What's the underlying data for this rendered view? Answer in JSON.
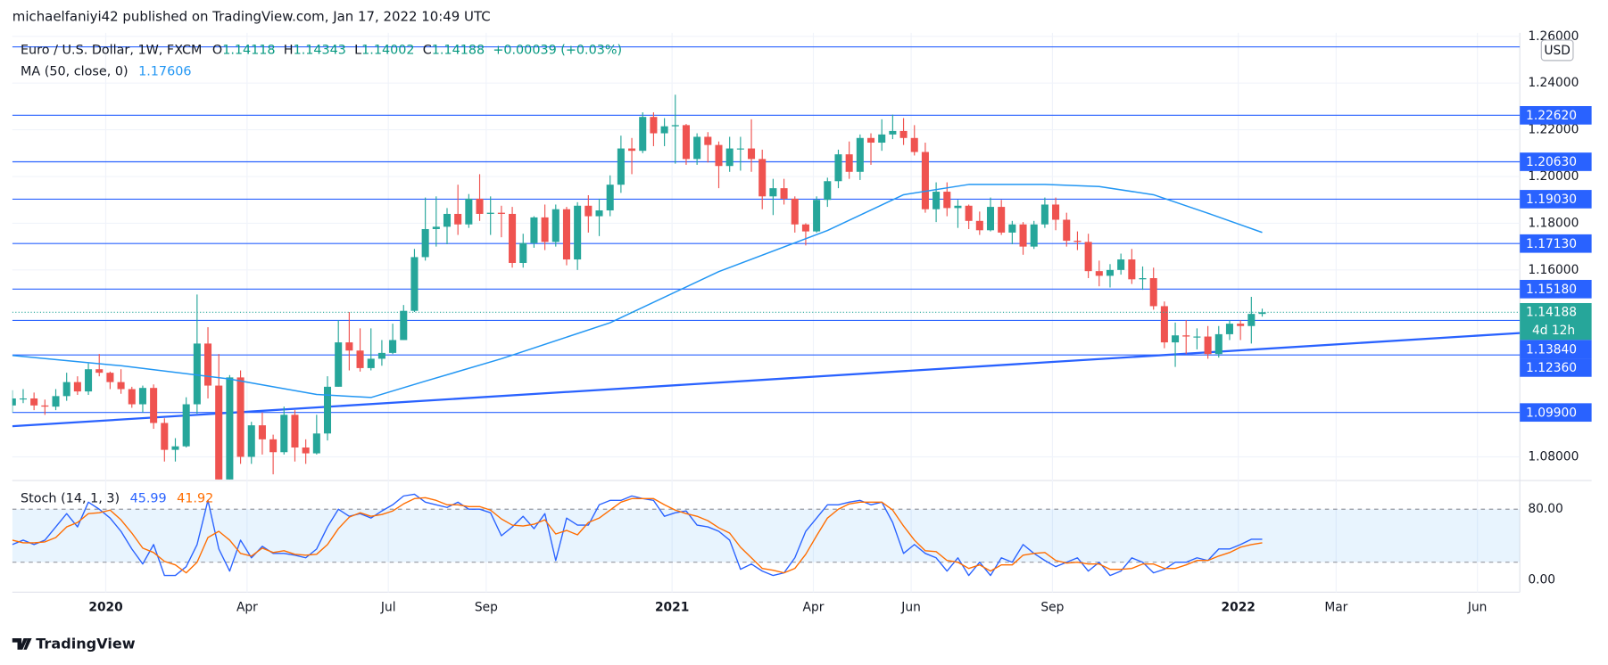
{
  "header": {
    "publisher": "michaelfaniyi42 published on TradingView.com, Jan 17, 2022 10:49 UTC"
  },
  "footer": {
    "brand": "TradingView"
  },
  "chart_data": [
    {
      "type": "candlestick",
      "title": "Euro / U.S. Dollar, 1W, FXCM",
      "ohlc_labels": [
        "O",
        "H",
        "L",
        "C"
      ],
      "change": "+0.00039 (+0.03%)",
      "currency": "USD",
      "countdown": "4d 12h",
      "up_color": "#26a69a",
      "down_color": "#ef5350",
      "open": [
        1.102,
        1.105,
        1.105,
        1.102,
        1.1015,
        1.106,
        1.112,
        1.108,
        1.1175,
        1.116,
        1.112,
        1.109,
        1.1025,
        1.1095,
        1.0945,
        1.083,
        1.0845,
        1.1025,
        1.1285,
        1.1105,
        1.0695,
        1.114,
        1.08,
        1.0935,
        1.0875,
        1.082,
        1.098,
        1.084,
        1.0815,
        1.09,
        1.11,
        1.129,
        1.1255,
        1.118,
        1.122,
        1.1245,
        1.13,
        1.1425,
        1.1655,
        1.1775,
        1.1785,
        1.184,
        1.1795,
        1.1905,
        1.184,
        1.1845,
        1.184,
        1.163,
        1.1715,
        1.1825,
        1.172,
        1.186,
        1.1645,
        1.1875,
        1.183,
        1.1855,
        1.1965,
        1.212,
        1.211,
        1.2255,
        1.2185,
        1.2215,
        1.222,
        1.2075,
        1.217,
        1.2135,
        1.2045,
        1.212,
        1.212,
        1.2075,
        1.1915,
        1.195,
        1.1905,
        1.1795,
        1.1765,
        1.19,
        1.198,
        1.2095,
        1.202,
        1.2165,
        1.2145,
        1.218,
        1.2195,
        1.2165,
        1.2105,
        1.186,
        1.1935,
        1.1865,
        1.1875,
        1.181,
        1.177,
        1.187,
        1.176,
        1.1795,
        1.17,
        1.1795,
        1.188,
        1.1815,
        1.1725,
        1.172,
        1.1595,
        1.1575,
        1.16,
        1.1645,
        1.156,
        1.1565,
        1.1445,
        1.129,
        1.132,
        1.1315,
        1.1315,
        1.124,
        1.1325,
        1.137,
        1.136,
        1.14118
      ],
      "high": [
        1.1085,
        1.109,
        1.1075,
        1.1045,
        1.109,
        1.116,
        1.1145,
        1.12,
        1.124,
        1.1165,
        1.1175,
        1.11,
        1.1105,
        1.111,
        1.0965,
        1.088,
        1.1055,
        1.1495,
        1.1355,
        1.124,
        1.115,
        1.117,
        1.095,
        1.099,
        1.0895,
        1.1015,
        1.1,
        1.0875,
        1.098,
        1.1145,
        1.1385,
        1.142,
        1.135,
        1.135,
        1.13,
        1.137,
        1.145,
        1.169,
        1.191,
        1.1915,
        1.1865,
        1.1965,
        1.1925,
        1.201,
        1.1915,
        1.1875,
        1.187,
        1.1755,
        1.183,
        1.188,
        1.188,
        1.187,
        1.189,
        1.192,
        1.1905,
        1.2005,
        1.2175,
        1.2165,
        1.2275,
        1.2275,
        1.225,
        1.235,
        1.2225,
        1.2185,
        1.219,
        1.215,
        1.217,
        1.217,
        1.2245,
        1.2115,
        1.199,
        1.199,
        1.1915,
        1.18,
        1.1915,
        1.1995,
        1.2115,
        1.215,
        1.218,
        1.2185,
        1.2245,
        1.2265,
        1.225,
        1.222,
        1.2145,
        1.1975,
        1.1975,
        1.19,
        1.188,
        1.185,
        1.191,
        1.19,
        1.181,
        1.1805,
        1.181,
        1.191,
        1.191,
        1.1845,
        1.1765,
        1.1755,
        1.164,
        1.1625,
        1.167,
        1.169,
        1.1615,
        1.161,
        1.1465,
        1.1375,
        1.1385,
        1.135,
        1.136,
        1.136,
        1.1385,
        1.1385,
        1.1485,
        1.14343
      ],
      "low": [
        1.099,
        1.103,
        1.1,
        1.098,
        1.1,
        1.104,
        1.1065,
        1.1065,
        1.1145,
        1.109,
        1.107,
        1.101,
        1.099,
        1.092,
        1.078,
        1.078,
        1.084,
        1.0985,
        1.105,
        1.0636,
        1.069,
        1.077,
        1.077,
        1.081,
        1.0725,
        1.081,
        1.078,
        1.077,
        1.081,
        1.087,
        1.11,
        1.117,
        1.1165,
        1.117,
        1.119,
        1.124,
        1.13,
        1.142,
        1.164,
        1.17,
        1.171,
        1.175,
        1.178,
        1.181,
        1.175,
        1.174,
        1.161,
        1.161,
        1.1695,
        1.1685,
        1.17,
        1.162,
        1.16,
        1.176,
        1.1745,
        1.183,
        1.193,
        1.201,
        1.21,
        1.213,
        1.213,
        1.2055,
        1.205,
        1.205,
        1.206,
        1.195,
        1.202,
        1.2025,
        1.202,
        1.186,
        1.1835,
        1.188,
        1.176,
        1.1705,
        1.176,
        1.187,
        1.195,
        1.199,
        1.1985,
        1.205,
        1.211,
        1.216,
        1.2135,
        1.209,
        1.1845,
        1.1805,
        1.183,
        1.178,
        1.1775,
        1.175,
        1.1765,
        1.175,
        1.171,
        1.1665,
        1.169,
        1.178,
        1.177,
        1.17,
        1.1685,
        1.1565,
        1.153,
        1.1525,
        1.158,
        1.154,
        1.1515,
        1.143,
        1.1265,
        1.1185,
        1.124,
        1.126,
        1.122,
        1.1225,
        1.13,
        1.13,
        1.1285,
        1.14002
      ],
      "close": [
        1.105,
        1.105,
        1.102,
        1.1015,
        1.106,
        1.112,
        1.108,
        1.1175,
        1.116,
        1.112,
        1.109,
        1.1025,
        1.1095,
        1.0945,
        1.083,
        1.0845,
        1.1025,
        1.1285,
        1.1105,
        1.0695,
        1.114,
        1.08,
        1.0935,
        1.0875,
        1.082,
        1.098,
        1.084,
        1.0815,
        1.09,
        1.11,
        1.129,
        1.1255,
        1.118,
        1.122,
        1.1245,
        1.13,
        1.1425,
        1.1655,
        1.1775,
        1.1785,
        1.184,
        1.1795,
        1.1905,
        1.184,
        1.1845,
        1.184,
        1.163,
        1.1715,
        1.1825,
        1.172,
        1.186,
        1.1645,
        1.1875,
        1.183,
        1.1855,
        1.1965,
        1.212,
        1.211,
        1.2255,
        1.2185,
        1.2215,
        1.222,
        1.2075,
        1.217,
        1.2135,
        1.2045,
        1.212,
        1.212,
        1.2075,
        1.1915,
        1.195,
        1.1905,
        1.1795,
        1.1765,
        1.19,
        1.198,
        1.2095,
        1.202,
        1.2165,
        1.2145,
        1.218,
        1.2195,
        1.2165,
        1.2105,
        1.186,
        1.1935,
        1.1865,
        1.1875,
        1.181,
        1.177,
        1.187,
        1.176,
        1.1795,
        1.17,
        1.1795,
        1.188,
        1.1815,
        1.1725,
        1.172,
        1.1595,
        1.1575,
        1.16,
        1.1645,
        1.156,
        1.1565,
        1.1445,
        1.129,
        1.132,
        1.1315,
        1.1315,
        1.124,
        1.1325,
        1.137,
        1.136,
        1.14118,
        1.14188
      ],
      "ma": {
        "name": "MA (50, close, 0)",
        "color": "#2196f3",
        "x": [
          0,
          10,
          20,
          28,
          33,
          38,
          45,
          55,
          65,
          75,
          82,
          88,
          95,
          100,
          105,
          110,
          115
        ],
        "values": [
          1.1234,
          1.119,
          1.1133,
          1.1067,
          1.1054,
          1.1124,
          1.122,
          1.1374,
          1.1593,
          1.1769,
          1.1922,
          1.1966,
          1.1966,
          1.1957,
          1.1922,
          1.1843,
          1.17606
        ]
      },
      "trendline": {
        "color": "#2962ff",
        "x": [
          0,
          138.7
        ],
        "values": [
          1.0931,
          1.133
        ]
      },
      "levels": [
        {
          "value": 1.2555
        },
        {
          "value": 1.2262,
          "label": "1.22620"
        },
        {
          "value": 1.2063,
          "label": "1.20630"
        },
        {
          "value": 1.1903,
          "label": "1.19030"
        },
        {
          "value": 1.1713,
          "label": "1.17130"
        },
        {
          "value": 1.1518,
          "label": "1.15180"
        },
        {
          "value": 1.1384,
          "label": "1.13840"
        },
        {
          "value": 1.1236,
          "label": "1.12360"
        },
        {
          "value": 1.099,
          "label": "1.09900"
        }
      ],
      "level_color": "#2962ff",
      "xlim": [
        0,
        138.7
      ],
      "xticks": [
        {
          "value": 8.6,
          "label": "2020"
        },
        {
          "value": 21.6,
          "label": "Apr"
        },
        {
          "value": 34.6,
          "label": "Jul"
        },
        {
          "value": 43.6,
          "label": "Sep"
        },
        {
          "value": 60.7,
          "label": "2021"
        },
        {
          "value": 73.7,
          "label": "Apr"
        },
        {
          "value": 82.7,
          "label": "Jun"
        },
        {
          "value": 95.7,
          "label": "Sep"
        },
        {
          "value": 112.8,
          "label": "2022"
        },
        {
          "value": 121.8,
          "label": "Mar"
        },
        {
          "value": 134.8,
          "label": "Jun"
        }
      ],
      "ylim": [
        1.0703,
        1.2615
      ],
      "yticks": [
        {
          "value": 1.26,
          "label": "1.26000"
        },
        {
          "value": 1.24,
          "label": "1.24000"
        },
        {
          "value": 1.22,
          "label": "1.22000"
        },
        {
          "value": 1.2,
          "label": "1.20000"
        },
        {
          "value": 1.18,
          "label": "1.18000"
        },
        {
          "value": 1.16,
          "label": "1.16000"
        },
        {
          "value": 1.08,
          "label": "1.08000"
        }
      ],
      "grid": true
    },
    {
      "type": "line",
      "title": "Stoch (14, 1, 3)",
      "series": [
        {
          "name": "%K",
          "color": "#2962ff",
          "values": [
            40,
            45,
            40,
            45,
            60,
            75,
            60,
            88,
            80,
            70,
            55,
            35,
            18,
            40,
            5,
            5,
            15,
            40,
            90,
            35,
            10,
            45,
            25,
            38,
            30,
            30,
            28,
            25,
            35,
            60,
            80,
            72,
            75,
            70,
            78,
            85,
            95,
            97,
            88,
            85,
            82,
            88,
            80,
            80,
            76,
            50,
            60,
            72,
            58,
            75,
            22,
            70,
            62,
            62,
            85,
            90,
            90,
            95,
            92,
            90,
            72,
            76,
            78,
            62,
            60,
            55,
            45,
            12,
            18,
            10,
            5,
            8,
            25,
            55,
            70,
            85,
            85,
            88,
            90,
            85,
            88,
            65,
            30,
            40,
            30,
            25,
            10,
            25,
            5,
            20,
            5,
            25,
            20,
            40,
            30,
            22,
            15,
            20,
            25,
            10,
            20,
            5,
            10,
            25,
            20,
            8,
            12,
            20,
            20,
            25,
            22,
            35,
            35,
            40,
            46,
            45.99
          ]
        },
        {
          "name": "%D",
          "color": "#ff6d00",
          "values": [
            45,
            42,
            42,
            43,
            48,
            60,
            65,
            75,
            76,
            79,
            68,
            53,
            36,
            31,
            21,
            17,
            8,
            20,
            48,
            55,
            45,
            30,
            27,
            36,
            31,
            33,
            29,
            28,
            29,
            40,
            58,
            71,
            76,
            72,
            74,
            78,
            86,
            92,
            93,
            90,
            85,
            85,
            83,
            83,
            79,
            69,
            62,
            61,
            63,
            68,
            52,
            56,
            51,
            65,
            70,
            79,
            88,
            92,
            92,
            92,
            85,
            79,
            75,
            72,
            67,
            59,
            53,
            37,
            25,
            13,
            11,
            8,
            13,
            29,
            50,
            70,
            80,
            86,
            88,
            88,
            88,
            79,
            61,
            45,
            33,
            32,
            22,
            20,
            13,
            17,
            10,
            17,
            17,
            28,
            30,
            31,
            22,
            19,
            20,
            18,
            18,
            12,
            12,
            13,
            18,
            18,
            13,
            13,
            17,
            22,
            22,
            27,
            31,
            37,
            40,
            41.92
          ]
        }
      ],
      "band": [
        20,
        80
      ],
      "ylim": [
        -13.9,
        111.3
      ],
      "yticks": [
        {
          "value": 80,
          "label": "80.00"
        },
        {
          "value": 0,
          "label": "0.00"
        }
      ]
    }
  ]
}
